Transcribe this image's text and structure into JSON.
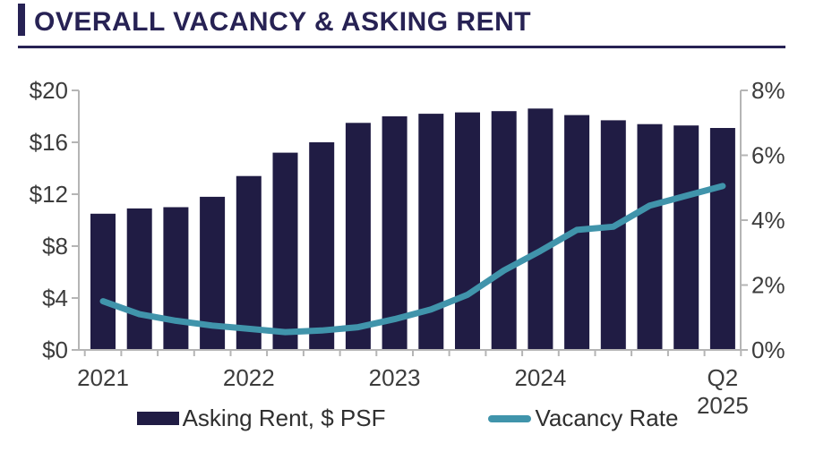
{
  "header": {
    "title": "OVERALL VACANCY & ASKING RENT"
  },
  "colors": {
    "title_navy": "#272254",
    "bar_navy": "#201c44",
    "line_teal": "#4094ab",
    "axis_line_gray": "#b5b5b5",
    "axis_text_gray": "#3c3c3c"
  },
  "chart_data": {
    "type": "bar+line combo",
    "title": "OVERALL VACANCY & ASKING RENT",
    "categories": [
      "2021 Q1",
      "2021 Q2",
      "2021 Q3",
      "2021 Q4",
      "2022 Q1",
      "2022 Q2",
      "2022 Q3",
      "2022 Q4",
      "2023 Q1",
      "2023 Q2",
      "2023 Q3",
      "2023 Q4",
      "2024 Q1",
      "2024 Q2",
      "2024 Q3",
      "2024 Q4",
      "2025 Q1",
      "2025 Q2"
    ],
    "series": [
      {
        "name": "Asking Rent, $ PSF",
        "type": "bar",
        "axis": "left",
        "color": "#201c44",
        "values": [
          10.5,
          10.9,
          11.0,
          11.8,
          13.4,
          15.2,
          16.0,
          17.5,
          18.0,
          18.2,
          18.3,
          18.4,
          18.6,
          18.1,
          17.7,
          17.4,
          17.3,
          17.1
        ]
      },
      {
        "name": "Vacancy Rate",
        "type": "line",
        "axis": "right",
        "color": "#4094ab",
        "values": [
          1.5,
          1.1,
          0.9,
          0.75,
          0.65,
          0.55,
          0.6,
          0.7,
          0.95,
          1.25,
          1.7,
          2.45,
          3.05,
          3.7,
          3.8,
          4.45,
          4.75,
          5.05
        ]
      }
    ],
    "left_axis": {
      "min": 0,
      "max": 20,
      "values": [
        0,
        4,
        8,
        12,
        16,
        20
      ],
      "labels": [
        "$0",
        "$4",
        "$8",
        "$12",
        "$16",
        "$20"
      ]
    },
    "right_axis": {
      "min": 0,
      "max": 8,
      "values": [
        0,
        2,
        4,
        6,
        8
      ],
      "labels": [
        "0%",
        "2%",
        "4%",
        "6%",
        "8%"
      ]
    },
    "x_labels": [
      {
        "index": 0,
        "lines": [
          "2021"
        ]
      },
      {
        "index": 4,
        "lines": [
          "2022"
        ]
      },
      {
        "index": 8,
        "lines": [
          "2023"
        ]
      },
      {
        "index": 12,
        "lines": [
          "2024"
        ]
      },
      {
        "index": 17,
        "lines": [
          "Q2",
          "2025"
        ]
      }
    ],
    "grid": "off",
    "legend_position": "bottom"
  }
}
